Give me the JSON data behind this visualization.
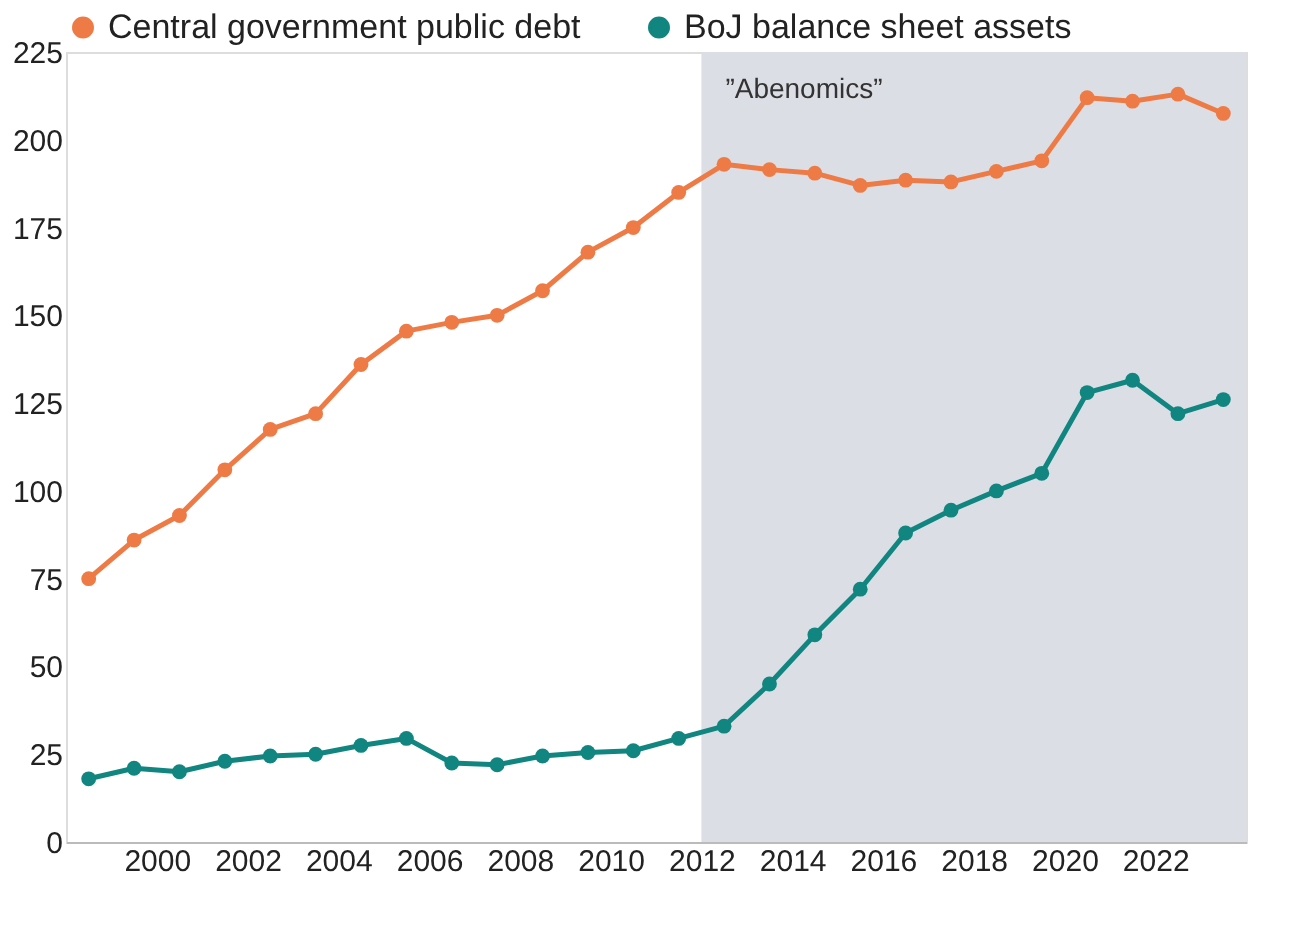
{
  "chart_data": {
    "type": "line",
    "x": [
      1998.5,
      1999.5,
      2000.5,
      2001.5,
      2002.5,
      2003.5,
      2004.5,
      2005.5,
      2006.5,
      2007.5,
      2008.5,
      2009.5,
      2010.5,
      2011.5,
      2012.5,
      2013.5,
      2014.5,
      2015.5,
      2016.5,
      2017.5,
      2018.5,
      2019.5,
      2020.5,
      2021.5,
      2022.5,
      2023.5
    ],
    "series": [
      {
        "name": "Central government public debt",
        "color": "#ee7b45",
        "values": [
          75,
          86,
          93,
          106,
          117.5,
          122,
          136,
          145.5,
          148,
          150,
          157,
          168,
          175,
          185,
          193,
          191.5,
          190.5,
          187,
          188.5,
          188,
          191,
          194,
          212,
          211,
          213,
          207.5
        ]
      },
      {
        "name": "BoJ balance sheet assets",
        "color": "#11857f",
        "values": [
          18,
          21,
          20,
          23,
          24.5,
          25,
          27.5,
          29.5,
          22.5,
          22,
          24.5,
          25.5,
          26,
          29.5,
          33,
          45,
          59,
          72,
          88,
          94.5,
          100,
          105,
          128,
          131.5,
          122,
          126
        ]
      }
    ],
    "xlim": [
      1998,
      2024
    ],
    "xticks": [
      2000,
      2002,
      2004,
      2006,
      2008,
      2010,
      2012,
      2014,
      2016,
      2018,
      2020,
      2022
    ],
    "ylim": [
      0,
      225
    ],
    "yticks": [
      0,
      25,
      50,
      75,
      100,
      125,
      150,
      175,
      200,
      225
    ],
    "bands": [
      {
        "axis": "x",
        "from": 2012,
        "to": 2024,
        "label": "”Abenomics”",
        "color": "#dcdee6"
      }
    ],
    "legend": "top left",
    "marker": "circle",
    "line_style": "solid",
    "grid": false
  }
}
